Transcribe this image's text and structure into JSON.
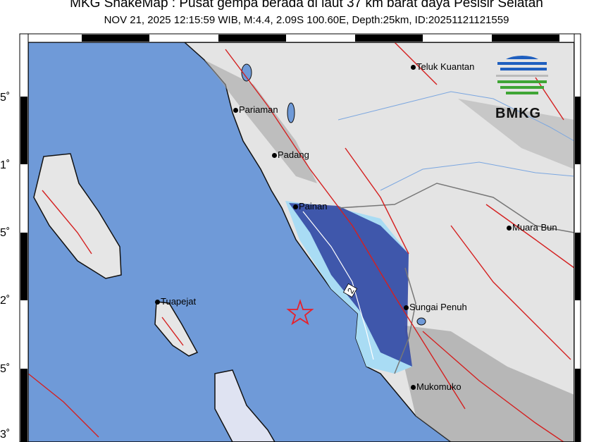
{
  "header": {
    "title": "MKG ShakeMap : Pusat gempa berada di laut 37 km barat daya Pesisir Selatan",
    "subtitle": "NOV 21, 2025 12:15:59 WIB, M:4.4, 2.09S 100.60E, Depth:25km, ID:20251121121559"
  },
  "axis": {
    "lat_labels": [
      "5˚",
      "1˚",
      "5˚",
      "2˚",
      "5˚",
      "3˚"
    ]
  },
  "cities": [
    {
      "name": "Teluk Kuantan"
    },
    {
      "name": "Pariaman"
    },
    {
      "name": "Padang"
    },
    {
      "name": "Painan"
    },
    {
      "name": "Muara Bun"
    },
    {
      "name": "Tuapejat"
    },
    {
      "name": "Sungai Penuh"
    },
    {
      "name": "Mukomuko"
    }
  ],
  "intensity_contour_label": "2",
  "epicenter": {
    "lat": "2.09S",
    "lon": "100.60E",
    "marker": "star-icon",
    "color": "#e8202a"
  },
  "logo": {
    "text": "BMKG"
  },
  "colors": {
    "sea": "#6f9ad8",
    "land": "#e6e6e6",
    "intensity_high": "#2d3f9e",
    "intensity_low": "#a9dcf4",
    "faults": "#d42020"
  }
}
